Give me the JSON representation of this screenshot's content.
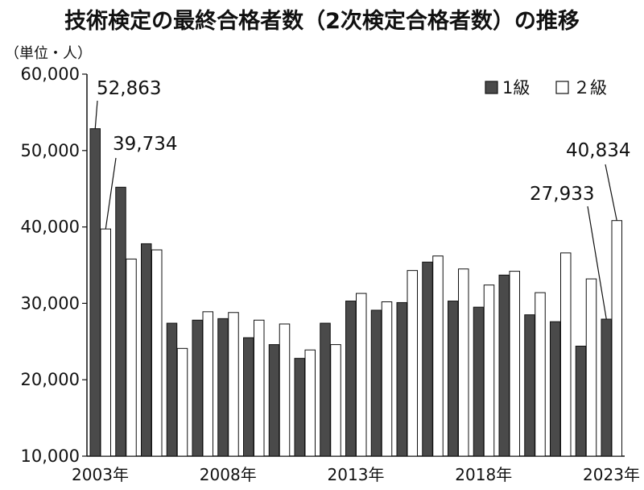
{
  "chart_data": {
    "type": "bar",
    "title": "技術検定の最終合格者数（2次検定合格者数）の推移",
    "unit_label": "（単位・人）",
    "categories": [
      "2003",
      "2004",
      "2005",
      "2006",
      "2007",
      "2008",
      "2009",
      "2010",
      "2011",
      "2012",
      "2013",
      "2014",
      "2015",
      "2016",
      "2017",
      "2018",
      "2019",
      "2020",
      "2021",
      "2022",
      "2023"
    ],
    "x_tick_labels": [
      {
        "category": "2003",
        "label": "2003年"
      },
      {
        "category": "2008",
        "label": "2008年"
      },
      {
        "category": "2013",
        "label": "2013年"
      },
      {
        "category": "2018",
        "label": "2018年"
      },
      {
        "category": "2023",
        "label": "2023年"
      }
    ],
    "y_ticks": [
      10000,
      20000,
      30000,
      40000,
      50000,
      60000
    ],
    "y_tick_labels": [
      "10,000",
      "20,000",
      "30,000",
      "40,000",
      "50,000",
      "60,000"
    ],
    "ylim": [
      10000,
      60000
    ],
    "legend_position": "top-right",
    "series": [
      {
        "name": "1級",
        "color": "#4a4a4a",
        "values": [
          52863,
          45200,
          37800,
          27400,
          27800,
          28000,
          25500,
          24600,
          22800,
          27400,
          30300,
          29100,
          30100,
          35400,
          30300,
          29500,
          33700,
          28500,
          27600,
          24400,
          27933
        ]
      },
      {
        "name": "２級",
        "color": "#ffffff",
        "values": [
          39734,
          35800,
          37000,
          24100,
          28900,
          28800,
          27800,
          27300,
          23900,
          24600,
          31300,
          30200,
          34300,
          36200,
          34500,
          32400,
          34200,
          31400,
          36600,
          33200,
          40834
        ]
      }
    ],
    "annotations": [
      {
        "text": "52,863",
        "series": 0,
        "index": 0
      },
      {
        "text": "39,734",
        "series": 1,
        "index": 0
      },
      {
        "text": "27,933",
        "series": 0,
        "index": 20
      },
      {
        "text": "40,834",
        "series": 1,
        "index": 20
      }
    ]
  }
}
